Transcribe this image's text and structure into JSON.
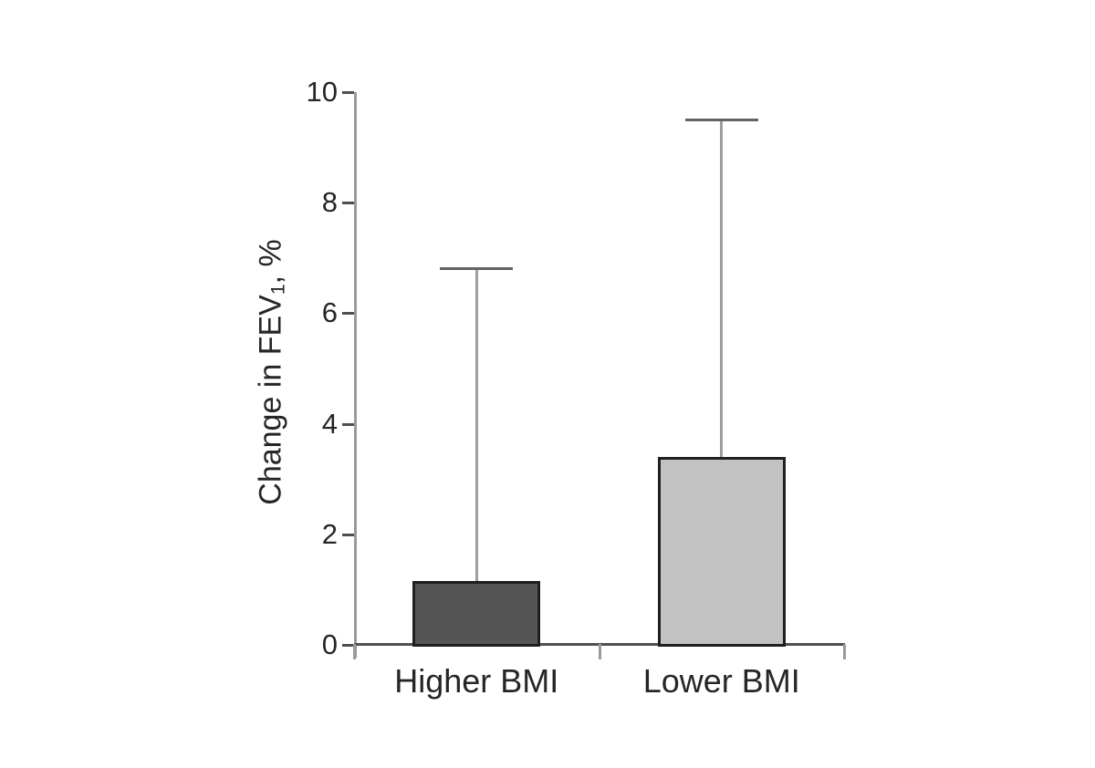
{
  "page": {
    "background_color": "#ffffff"
  },
  "chart_data": {
    "type": "bar",
    "title": "",
    "categories": [
      "Higher BMI",
      "Lower BMI"
    ],
    "values": [
      1.15,
      3.4
    ],
    "error_upper_tops": [
      6.8,
      9.5
    ],
    "ylabel": "Change in FEV1, %",
    "ylabel_parts": {
      "main": "Change in FEV",
      "sub": "1",
      "suffix": ", %"
    },
    "xlabel": "",
    "ylim": [
      0,
      10
    ],
    "yticks": [
      0,
      2,
      4,
      6,
      8,
      10
    ],
    "grid": false,
    "legend": false,
    "colors": {
      "bar_fills": [
        "#555555",
        "#c2c2c2"
      ],
      "bar_border": "#1f1f1f",
      "y_axis_line": "#9a9a9a",
      "x_axis_line": "#4f4f4f",
      "y_tick": "#4f4f4f",
      "x_tick": "#9a9a9a",
      "error_stem": "#9f9f9f",
      "error_cap": "#636363",
      "text": "#262626"
    }
  }
}
